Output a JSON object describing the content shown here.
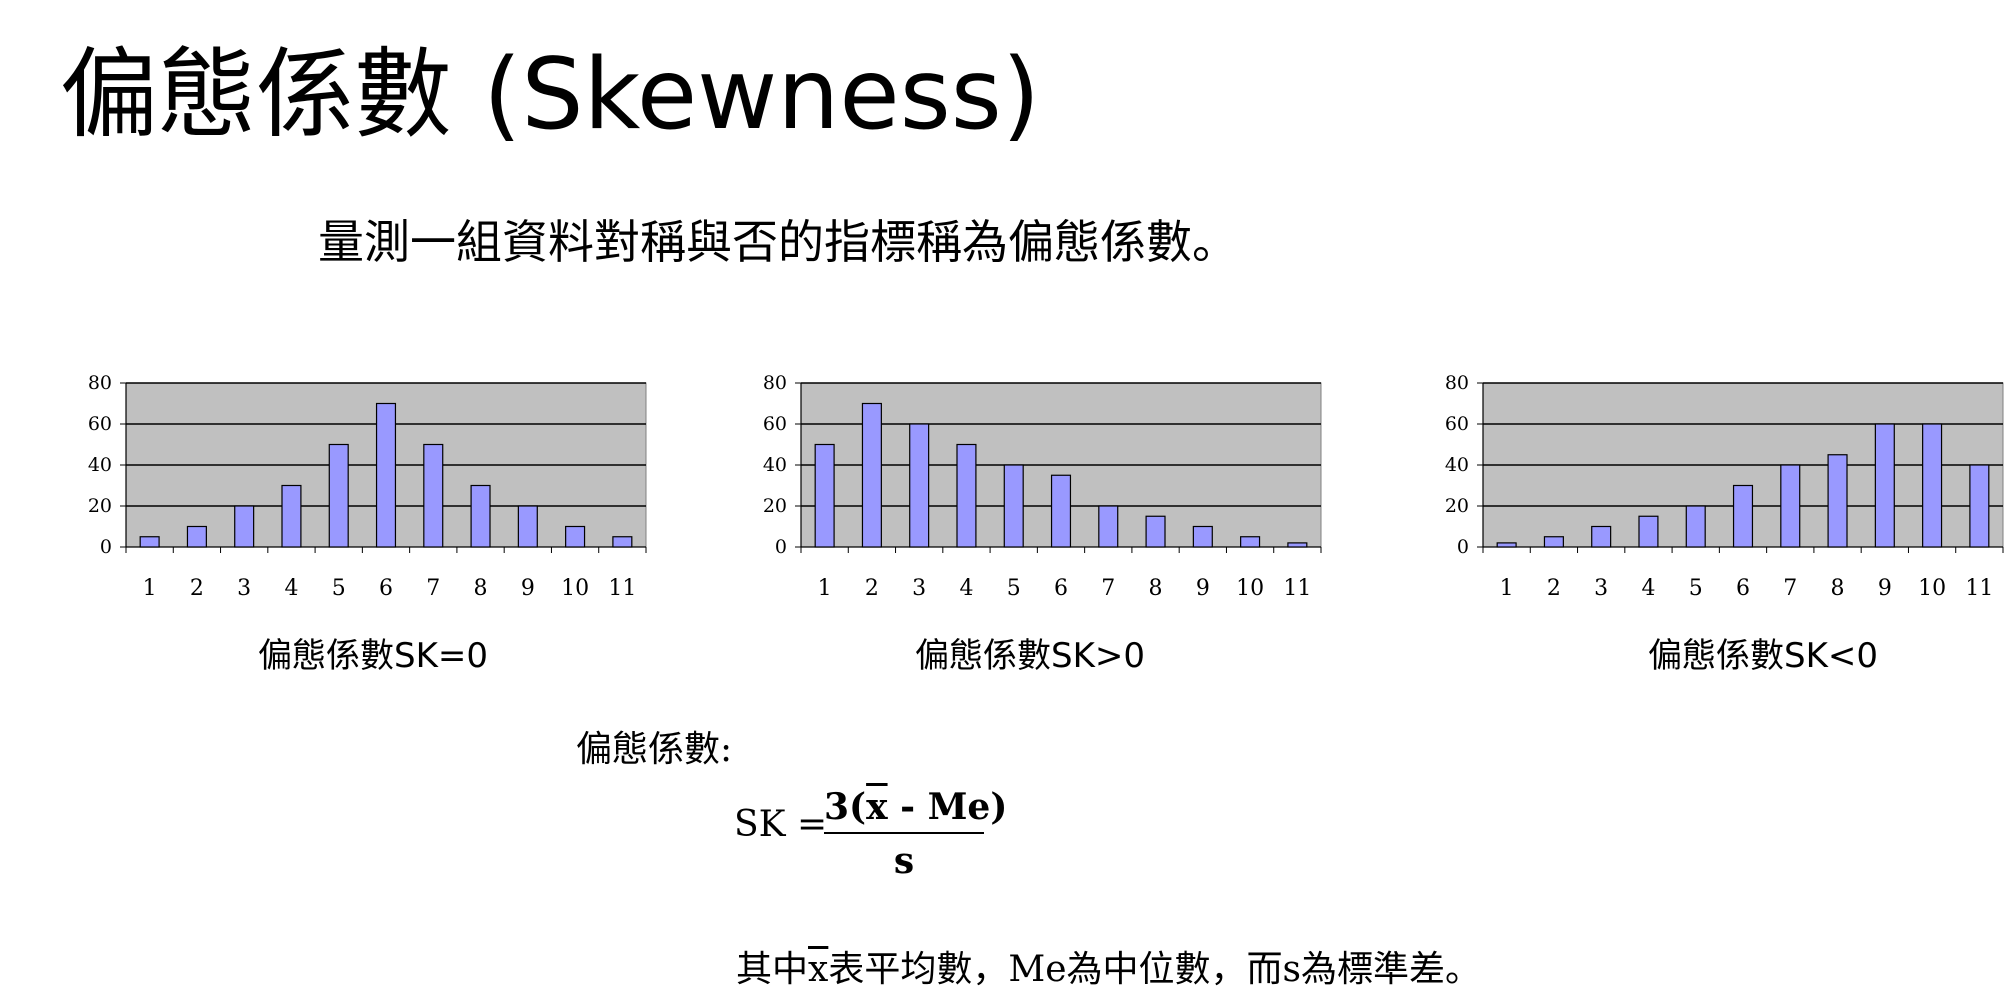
{
  "slide": {
    "title": "偏態係數 (Skewness)",
    "subtitle": "量測一組資料對稱與否的指標稱為偏態係數。",
    "formula_label": "偏態係數:",
    "formula_lhs": "SK =",
    "formula_numerator_prefix": "3(",
    "formula_xbar": "x",
    "formula_numerator_suffix": " - Me)",
    "formula_denominator": "s",
    "note_prefix": "其中",
    "note_xbar": "x",
    "note_suffix": "表平均數，Me為中位數，而s為標準差。"
  },
  "colors": {
    "bar_fill": "#9999ff",
    "plot_background": "#c0c0c0",
    "gridline": "#000000"
  },
  "chart_data": [
    {
      "type": "bar",
      "caption": "偏態係數SK=0",
      "categories": [
        "1",
        "2",
        "3",
        "4",
        "5",
        "6",
        "7",
        "8",
        "9",
        "10",
        "11"
      ],
      "values": [
        5,
        10,
        20,
        30,
        50,
        70,
        50,
        30,
        20,
        10,
        5
      ],
      "yticks": [
        "0",
        "20",
        "40",
        "60",
        "80"
      ],
      "ylim": [
        0,
        80
      ],
      "grid": true
    },
    {
      "type": "bar",
      "caption": "偏態係數SK>0",
      "categories": [
        "1",
        "2",
        "3",
        "4",
        "5",
        "6",
        "7",
        "8",
        "9",
        "10",
        "11"
      ],
      "values": [
        50,
        70,
        60,
        50,
        40,
        35,
        20,
        15,
        10,
        5,
        2
      ],
      "yticks": [
        "0",
        "20",
        "40",
        "60",
        "80"
      ],
      "ylim": [
        0,
        80
      ],
      "grid": true
    },
    {
      "type": "bar",
      "caption": "偏態係數SK<0",
      "categories": [
        "1",
        "2",
        "3",
        "4",
        "5",
        "6",
        "7",
        "8",
        "9",
        "10",
        "11"
      ],
      "values": [
        2,
        5,
        10,
        15,
        20,
        30,
        40,
        45,
        60,
        60,
        40
      ],
      "yticks": [
        "0",
        "20",
        "40",
        "60",
        "80"
      ],
      "ylim": [
        0,
        80
      ],
      "grid": true
    }
  ]
}
